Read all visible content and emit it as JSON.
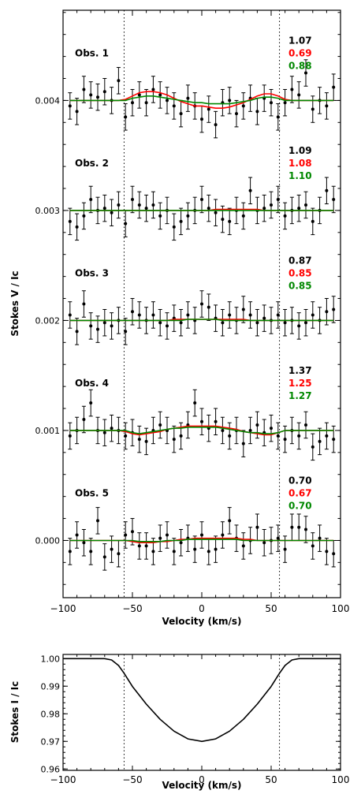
{
  "chart_data": [
    {
      "type": "scatter",
      "xlabel": "Velocity (km/s)",
      "ylabel": "Stokes V / Ic",
      "xlim": [
        -100,
        100
      ],
      "ylim": [
        -0.00052,
        0.00482
      ],
      "xticks": [
        -100,
        -50,
        0,
        50,
        100
      ],
      "yticks": [
        0.0,
        0.001,
        0.002,
        0.003,
        0.004
      ],
      "ytick_labels": [
        "0.000",
        "0.001",
        "0.002",
        "0.003",
        "0.004"
      ],
      "vlines": [
        -56,
        56
      ],
      "colors": {
        "data": "#000000",
        "model_red": "#ff0000",
        "model_green": "#008800",
        "text_black": "#000000"
      },
      "velocity": [
        -95,
        -90,
        -85,
        -80,
        -75,
        -70,
        -65,
        -60,
        -55,
        -50,
        -45,
        -40,
        -35,
        -30,
        -25,
        -20,
        -15,
        -10,
        -5,
        0,
        5,
        10,
        15,
        20,
        25,
        30,
        35,
        40,
        45,
        50,
        55,
        60,
        65,
        70,
        75,
        80,
        85,
        90,
        95
      ],
      "error": 0.00012,
      "observations": [
        {
          "label": "Obs. 1",
          "offset": 0.004,
          "values": [
            "1.07",
            "0.69",
            "0.88"
          ],
          "stokes_v": [
            0.00395,
            0.0039,
            0.0041,
            0.00405,
            0.00403,
            0.00408,
            0.004,
            0.00418,
            0.00385,
            0.00398,
            0.00405,
            0.00398,
            0.0041,
            0.00405,
            0.004,
            0.00395,
            0.00388,
            0.00402,
            0.00395,
            0.00383,
            0.00392,
            0.00378,
            0.00398,
            0.004,
            0.00388,
            0.00395,
            0.00402,
            0.0039,
            0.00402,
            0.00398,
            0.00385,
            0.00398,
            0.0041,
            0.00405,
            0.00425,
            0.00392,
            0.004,
            0.00395,
            0.00412
          ],
          "model_red": [
            0.004,
            0.004,
            0.004,
            0.004,
            0.004,
            0.004,
            0.004,
            0.004,
            0.00401,
            0.00404,
            0.00407,
            0.00408,
            0.00408,
            0.00407,
            0.00405,
            0.00402,
            0.00399,
            0.00397,
            0.00395,
            0.00395,
            0.00394,
            0.00393,
            0.00393,
            0.00394,
            0.00396,
            0.00398,
            0.00401,
            0.00404,
            0.00406,
            0.00406,
            0.00404,
            0.00401,
            0.004,
            0.004,
            0.004,
            0.004,
            0.004,
            0.004,
            0.004
          ],
          "model_green": [
            0.004,
            0.004,
            0.004,
            0.004,
            0.004,
            0.004,
            0.004,
            0.004,
            0.004,
            0.00402,
            0.00403,
            0.00404,
            0.00404,
            0.00403,
            0.00402,
            0.00401,
            0.004,
            0.00399,
            0.00398,
            0.00398,
            0.00397,
            0.00397,
            0.00397,
            0.00397,
            0.00398,
            0.00399,
            0.004,
            0.00402,
            0.00403,
            0.00403,
            0.00402,
            0.004,
            0.004,
            0.004,
            0.004,
            0.004,
            0.004,
            0.004,
            0.004
          ]
        },
        {
          "label": "Obs. 2",
          "offset": 0.003,
          "values": [
            "1.09",
            "1.08",
            "1.10"
          ],
          "stokes_v": [
            0.0029,
            0.00285,
            0.00295,
            0.0031,
            0.003,
            0.00302,
            0.00298,
            0.00305,
            0.00288,
            0.0031,
            0.00305,
            0.00302,
            0.00305,
            0.00295,
            0.003,
            0.00285,
            0.0029,
            0.00295,
            0.003,
            0.0031,
            0.00302,
            0.00298,
            0.00292,
            0.0029,
            0.003,
            0.00295,
            0.00318,
            0.003,
            0.00302,
            0.00305,
            0.0031,
            0.00295,
            0.003,
            0.00302,
            0.00305,
            0.0029,
            0.003,
            0.00318,
            0.0031
          ],
          "model_red": [
            0.003,
            0.003,
            0.003,
            0.003,
            0.003,
            0.003,
            0.003,
            0.003,
            0.003,
            0.003,
            0.003,
            0.003,
            0.003,
            0.003,
            0.003,
            0.003,
            0.003,
            0.003,
            0.003,
            0.003,
            0.003,
            0.00301,
            0.00301,
            0.00301,
            0.00301,
            0.00301,
            0.00301,
            0.00301,
            0.003,
            0.003,
            0.003,
            0.003,
            0.003,
            0.003,
            0.003,
            0.003,
            0.003,
            0.003,
            0.003
          ],
          "model_green": [
            0.003,
            0.003,
            0.003,
            0.003,
            0.003,
            0.003,
            0.003,
            0.003,
            0.003,
            0.003,
            0.003,
            0.003,
            0.003,
            0.003,
            0.003,
            0.003,
            0.003,
            0.003,
            0.003,
            0.003,
            0.003,
            0.003,
            0.003,
            0.003,
            0.003,
            0.003,
            0.003,
            0.003,
            0.003,
            0.003,
            0.003,
            0.003,
            0.003,
            0.003,
            0.003,
            0.003,
            0.003,
            0.003,
            0.003
          ]
        },
        {
          "label": "Obs. 3",
          "offset": 0.002,
          "values": [
            "0.87",
            "0.85",
            "0.85"
          ],
          "stokes_v": [
            0.00205,
            0.0019,
            0.00215,
            0.00195,
            0.00192,
            0.00198,
            0.00195,
            0.002,
            0.0019,
            0.00208,
            0.00205,
            0.002,
            0.00205,
            0.00198,
            0.00195,
            0.00202,
            0.00198,
            0.00205,
            0.002,
            0.00215,
            0.00212,
            0.00202,
            0.00198,
            0.00205,
            0.002,
            0.0021,
            0.00205,
            0.00198,
            0.00202,
            0.002,
            0.00205,
            0.00198,
            0.002,
            0.00195,
            0.00198,
            0.00205,
            0.002,
            0.00208,
            0.0021
          ],
          "model_red": [
            0.002,
            0.002,
            0.002,
            0.002,
            0.002,
            0.002,
            0.002,
            0.002,
            0.002,
            0.002,
            0.002,
            0.002,
            0.002,
            0.002,
            0.002,
            0.00201,
            0.00201,
            0.00201,
            0.00201,
            0.00201,
            0.00201,
            0.00201,
            0.00201,
            0.00201,
            0.00201,
            0.00201,
            0.002,
            0.002,
            0.002,
            0.002,
            0.002,
            0.002,
            0.002,
            0.002,
            0.002,
            0.002,
            0.002,
            0.002,
            0.002
          ],
          "model_green": [
            0.002,
            0.002,
            0.002,
            0.002,
            0.002,
            0.002,
            0.002,
            0.002,
            0.002,
            0.002,
            0.002,
            0.002,
            0.002,
            0.002,
            0.002,
            0.002,
            0.002,
            0.00201,
            0.00201,
            0.00201,
            0.00201,
            0.00201,
            0.002,
            0.002,
            0.002,
            0.002,
            0.002,
            0.002,
            0.002,
            0.002,
            0.002,
            0.002,
            0.002,
            0.002,
            0.002,
            0.002,
            0.002,
            0.002,
            0.002
          ]
        },
        {
          "label": "Obs. 4",
          "offset": 0.001,
          "values": [
            "1.37",
            "1.25",
            "1.27"
          ],
          "stokes_v": [
            0.00095,
            0.001,
            0.0011,
            0.00125,
            0.001,
            0.00098,
            0.00102,
            0.001,
            0.00095,
            0.00098,
            0.00092,
            0.0009,
            0.001,
            0.00105,
            0.001,
            0.00092,
            0.00095,
            0.00105,
            0.00125,
            0.00108,
            0.00102,
            0.00108,
            0.001,
            0.00095,
            0.001,
            0.00088,
            0.001,
            0.00105,
            0.00098,
            0.00102,
            0.00095,
            0.00092,
            0.001,
            0.00095,
            0.00105,
            0.00085,
            0.0009,
            0.00095,
            0.00092
          ],
          "model_red": [
            0.001,
            0.001,
            0.001,
            0.001,
            0.001,
            0.001,
            0.001,
            0.001,
            0.00099,
            0.00097,
            0.00096,
            0.00097,
            0.00098,
            0.00099,
            0.00101,
            0.00102,
            0.00103,
            0.00104,
            0.00104,
            0.00104,
            0.00104,
            0.00104,
            0.00103,
            0.00102,
            0.00101,
            0.00099,
            0.00098,
            0.00097,
            0.00096,
            0.00096,
            0.00098,
            0.001,
            0.001,
            0.001,
            0.001,
            0.001,
            0.001,
            0.001,
            0.001
          ],
          "model_green": [
            0.001,
            0.001,
            0.001,
            0.001,
            0.001,
            0.001,
            0.001,
            0.001,
            0.001,
            0.00098,
            0.00097,
            0.00098,
            0.00099,
            0.001,
            0.00101,
            0.00102,
            0.00102,
            0.00103,
            0.00103,
            0.00103,
            0.00103,
            0.00103,
            0.00102,
            0.00101,
            0.001,
            0.00099,
            0.00098,
            0.00098,
            0.00097,
            0.00097,
            0.00098,
            0.001,
            0.001,
            0.001,
            0.001,
            0.001,
            0.001,
            0.001,
            0.001
          ]
        },
        {
          "label": "Obs. 5",
          "offset": 0.0,
          "values": [
            "0.70",
            "0.67",
            "0.70"
          ],
          "stokes_v": [
            -0.0001,
            5e-05,
            -2e-05,
            -0.0001,
            0.00018,
            -0.00015,
            -8e-05,
            -0.00012,
            5e-05,
            8e-05,
            -5e-05,
            -5e-05,
            -0.0001,
            2e-05,
            5e-05,
            -0.0001,
            -2e-05,
            2e-05,
            -8e-05,
            5e-05,
            -0.0001,
            -8e-05,
            5e-05,
            0.00018,
            2e-05,
            -5e-05,
            0.0,
            0.00012,
            -2e-05,
            0.0,
            2e-05,
            -8e-05,
            0.00012,
            0.00012,
            0.0001,
            -5e-05,
            2e-05,
            -0.0001,
            -0.00012
          ],
          "model_red": [
            0.0,
            0.0,
            0.0,
            0.0,
            0.0,
            0.0,
            0.0,
            0.0,
            0.0,
            -1e-05,
            -2e-05,
            -2e-05,
            -2e-05,
            -1e-05,
            -1e-05,
            0.0,
            1e-05,
            1e-05,
            2e-05,
            2e-05,
            2e-05,
            2e-05,
            2e-05,
            2e-05,
            2e-05,
            1e-05,
            1e-05,
            0.0,
            0.0,
            0.0,
            0.0,
            0.0,
            0.0,
            0.0,
            0.0,
            0.0,
            0.0,
            0.0,
            0.0
          ],
          "model_green": [
            0.0,
            0.0,
            0.0,
            0.0,
            0.0,
            0.0,
            0.0,
            0.0,
            0.0,
            0.0,
            -1e-05,
            -1e-05,
            -1e-05,
            -1e-05,
            0.0,
            0.0,
            0.0,
            1e-05,
            1e-05,
            1e-05,
            1e-05,
            1e-05,
            1e-05,
            1e-05,
            1e-05,
            0.0,
            0.0,
            0.0,
            0.0,
            0.0,
            0.0,
            0.0,
            0.0,
            0.0,
            0.0,
            0.0,
            0.0,
            0.0,
            0.0
          ]
        }
      ]
    },
    {
      "type": "line",
      "xlabel": "Velocity (km/s)",
      "ylabel": "Stokes I / Ic",
      "xlim": [
        -100,
        100
      ],
      "ylim": [
        0.9595,
        1.0015
      ],
      "xticks": [
        -100,
        -50,
        0,
        50,
        100
      ],
      "yticks": [
        0.96,
        0.97,
        0.98,
        0.99,
        1.0
      ],
      "ytick_labels": [
        "0.96",
        "0.97",
        "0.98",
        "0.99",
        "1.00"
      ],
      "vlines": [
        -56,
        56
      ],
      "x": [
        -100,
        -90,
        -80,
        -70,
        -65,
        -60,
        -56,
        -50,
        -40,
        -30,
        -20,
        -10,
        0,
        10,
        20,
        30,
        40,
        50,
        56,
        60,
        65,
        70,
        80,
        90,
        100
      ],
      "y": [
        1.0,
        1.0,
        1.0,
        1.0,
        0.9995,
        0.9975,
        0.9947,
        0.9899,
        0.9835,
        0.978,
        0.9737,
        0.9709,
        0.97,
        0.9709,
        0.9737,
        0.978,
        0.9835,
        0.9899,
        0.9947,
        0.9975,
        0.9995,
        1.0,
        1.0,
        1.0,
        1.0
      ]
    }
  ]
}
